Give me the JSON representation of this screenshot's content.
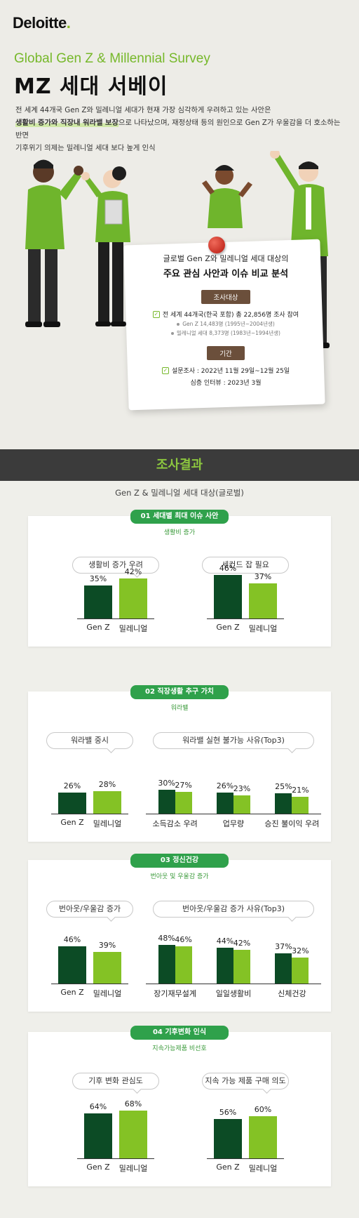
{
  "header": {
    "logo": "Deloitte",
    "logo_dot": ".",
    "subtitle": "Global Gen Z & Millennial Survey",
    "title": "MZ 세대 서베이",
    "intro_line1": "전 세계 44개국 Gen Z와 밀레니얼 세대가 현재 가장 심각하게 우려하고 있는 사안은",
    "intro_line2_bold": "생활비 증가와 직장내 워라밸 보장",
    "intro_line2_rest": "으로 나타났으며, 재정상태 등의 원인으로 Gen Z가 우울감을 더 호소하는 반면",
    "intro_line3": "기후위기 의제는 밀레니얼 세대 보다 높게 인식"
  },
  "survey_card": {
    "line1": "글로벌 Gen Z와 밀레니얼 세대 대상의",
    "line2": "주요 관심 사안과 이슈 비교 분석",
    "target_tag": "조사대상",
    "target_text": "전 세계 44개국(한국 포함) 총 22,856명 조사 참여",
    "genz_text": "Gen Z 14,483명 (1995년~2004년생)",
    "millennial_text": "밀레니얼 세대 8,373명 (1983년~1994년생)",
    "period_tag": "기간",
    "survey_period": "설문조사 : 2022년 11월 29일~12월 25일",
    "interview_period": "심층 인터뷰 : 2023년 3월"
  },
  "results": {
    "band_title": "조사결과",
    "scope": "Gen Z & 밀레니얼 세대 대상(글로벌)"
  },
  "colors": {
    "genz": "#0c4b25",
    "millennial": "#84c225",
    "accent": "#2fa14b"
  },
  "chart_data": [
    {
      "tab": "01 세대별 최대 이슈 사안",
      "subtitle": "생활비 증가",
      "groups": [
        {
          "title": "생활비 증가 우려",
          "type": "bar",
          "categories": [
            "Gen Z",
            "밀레니얼"
          ],
          "values": [
            35,
            42
          ]
        },
        {
          "title": "세컨드 잡 필요",
          "type": "bar",
          "categories": [
            "Gen Z",
            "밀레니얼"
          ],
          "values": [
            46,
            37
          ]
        }
      ]
    },
    {
      "tab": "02 직장생활 추구 가치",
      "subtitle": "워라밸",
      "groups": [
        {
          "title": "워라밸 중시",
          "type": "bar",
          "categories": [
            "Gen Z",
            "밀레니얼"
          ],
          "values": [
            26,
            28
          ]
        },
        {
          "title": "워라밸 실현 불가능 사유(Top3)",
          "type": "grouped-bar",
          "categories": [
            "소득감소 우려",
            "업무량",
            "승진 불이익 우려"
          ],
          "genz": [
            30,
            26,
            25
          ],
          "millennial": [
            27,
            23,
            21
          ]
        }
      ]
    },
    {
      "tab": "03 정신건강",
      "subtitle": "번아웃 및 우울감 증가",
      "groups": [
        {
          "title": "번아웃/우울감 증가",
          "type": "bar",
          "categories": [
            "Gen Z",
            "밀레니얼"
          ],
          "values": [
            46,
            39
          ]
        },
        {
          "title": "번아웃/우울감 증가 사유(Top3)",
          "type": "grouped-bar",
          "categories": [
            "장기재무설계",
            "일일생활비",
            "신체건강"
          ],
          "genz": [
            48,
            44,
            37
          ],
          "millennial": [
            46,
            42,
            32
          ]
        }
      ]
    },
    {
      "tab": "04 기후변화 인식",
      "subtitle": "지속가능제품 비선호",
      "groups": [
        {
          "title": "기후 변화 관심도",
          "type": "bar",
          "categories": [
            "Gen Z",
            "밀레니얼"
          ],
          "values": [
            64,
            68
          ]
        },
        {
          "title": "지속 가능 제품 구매 의도",
          "type": "bar",
          "categories": [
            "Gen Z",
            "밀레니얼"
          ],
          "values": [
            56,
            60
          ]
        }
      ]
    }
  ]
}
